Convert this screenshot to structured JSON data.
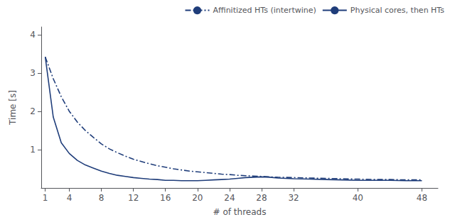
{
  "chart_data": {
    "type": "line",
    "xlabel": "# of threads",
    "ylabel": "Time [s]",
    "xlim": [
      0.5,
      50
    ],
    "ylim": [
      0,
      4.2
    ],
    "xticks": [
      1,
      4,
      8,
      12,
      16,
      20,
      24,
      28,
      32,
      40,
      48
    ],
    "yticks": [
      1,
      2,
      3,
      4
    ],
    "grid": false,
    "legend": "upper right",
    "x": [
      1,
      2,
      3,
      4,
      5,
      6,
      7,
      8,
      9,
      10,
      11,
      12,
      13,
      14,
      15,
      16,
      17,
      18,
      19,
      20,
      21,
      22,
      23,
      24,
      25,
      26,
      27,
      28,
      29,
      30,
      32,
      34,
      36,
      38,
      40,
      42,
      44,
      46,
      48
    ],
    "series": [
      {
        "name": "Affinitized HTs (intertwine)",
        "color": "#1f3d7a",
        "line_style": "dashdot",
        "values": [
          3.42,
          2.85,
          2.38,
          2.0,
          1.72,
          1.5,
          1.32,
          1.15,
          1.02,
          0.92,
          0.83,
          0.75,
          0.69,
          0.63,
          0.58,
          0.54,
          0.5,
          0.47,
          0.44,
          0.42,
          0.4,
          0.38,
          0.36,
          0.35,
          0.33,
          0.32,
          0.31,
          0.3,
          0.29,
          0.28,
          0.27,
          0.26,
          0.25,
          0.24,
          0.23,
          0.22,
          0.22,
          0.21,
          0.21
        ]
      },
      {
        "name": "Physical cores, then HTs",
        "color": "#1f3d7a",
        "line_style": "solid",
        "values": [
          3.42,
          1.85,
          1.18,
          0.9,
          0.72,
          0.6,
          0.52,
          0.44,
          0.38,
          0.33,
          0.3,
          0.27,
          0.25,
          0.23,
          0.22,
          0.2,
          0.2,
          0.19,
          0.19,
          0.19,
          0.2,
          0.21,
          0.22,
          0.23,
          0.25,
          0.27,
          0.28,
          0.29,
          0.28,
          0.26,
          0.24,
          0.23,
          0.22,
          0.21,
          0.2,
          0.2,
          0.2,
          0.19,
          0.19
        ]
      }
    ]
  }
}
